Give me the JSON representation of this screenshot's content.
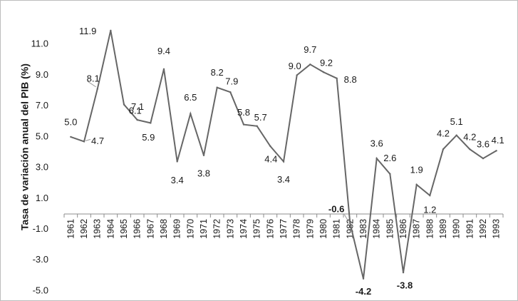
{
  "chart_data": {
    "type": "line",
    "title": "",
    "xlabel": "",
    "ylabel": "Tasa de variación anual del PIB (%)",
    "ylim": [
      -5.0,
      13.0
    ],
    "y_ticks": [
      "-5.0",
      "-3.0",
      "-1.0",
      "1.0",
      "3.0",
      "5.0",
      "7.0",
      "9.0",
      "11.0"
    ],
    "grid": false,
    "legend": "none",
    "line_color": "#666666",
    "categories": [
      "1961",
      "1962",
      "1963",
      "1964",
      "1965",
      "1966",
      "1967",
      "1968",
      "1969",
      "1970",
      "1971",
      "1972",
      "1973",
      "1974",
      "1975",
      "1976",
      "1977",
      "1978",
      "1979",
      "1980",
      "1981",
      "1982",
      "1983",
      "1984",
      "1985",
      "1986",
      "1987",
      "1988",
      "1989",
      "1990",
      "1991",
      "1992",
      "1993"
    ],
    "values": [
      5.0,
      4.7,
      8.1,
      11.9,
      7.1,
      6.1,
      5.9,
      9.4,
      3.4,
      6.5,
      3.8,
      8.2,
      7.9,
      5.8,
      5.7,
      4.4,
      3.4,
      9.0,
      9.7,
      9.2,
      8.8,
      -0.6,
      -4.2,
      3.6,
      2.6,
      -3.8,
      1.9,
      1.2,
      4.2,
      5.1,
      4.2,
      3.6,
      4.1
    ],
    "data_labels": [
      {
        "year": "1961",
        "text": "5.0"
      },
      {
        "year": "1962",
        "text": "4.7"
      },
      {
        "year": "1963",
        "text": "8.1"
      },
      {
        "year": "1964",
        "text": "11.9"
      },
      {
        "year": "1965",
        "text": "7.1"
      },
      {
        "year": "1966",
        "text": "6.1"
      },
      {
        "year": "1967",
        "text": "5.9"
      },
      {
        "year": "1968",
        "text": "9.4"
      },
      {
        "year": "1969",
        "text": "3.4"
      },
      {
        "year": "1970",
        "text": "6.5"
      },
      {
        "year": "1971",
        "text": "3.8"
      },
      {
        "year": "1972",
        "text": "8.2"
      },
      {
        "year": "1973",
        "text": "7.9"
      },
      {
        "year": "1974",
        "text": "5.8"
      },
      {
        "year": "1975",
        "text": "5.7"
      },
      {
        "year": "1976",
        "text": "4.4"
      },
      {
        "year": "1977",
        "text": "3.4"
      },
      {
        "year": "1978",
        "text": "9.0"
      },
      {
        "year": "1979",
        "text": "9.7"
      },
      {
        "year": "1980",
        "text": "9.2"
      },
      {
        "year": "1981",
        "text": "8.8"
      },
      {
        "year": "1982",
        "text": "-0.6"
      },
      {
        "year": "1983",
        "text": "-4.2"
      },
      {
        "year": "1984",
        "text": "3.6"
      },
      {
        "year": "1985",
        "text": "2.6"
      },
      {
        "year": "1986",
        "text": "-3.8"
      },
      {
        "year": "1987",
        "text": "1.9"
      },
      {
        "year": "1988",
        "text": "1.2"
      },
      {
        "year": "1989",
        "text": "4.2"
      },
      {
        "year": "1990",
        "text": "5.1"
      },
      {
        "year": "1991",
        "text": "4.2"
      },
      {
        "year": "1992",
        "text": "3.6"
      },
      {
        "year": "1993",
        "text": "4.1"
      }
    ]
  }
}
